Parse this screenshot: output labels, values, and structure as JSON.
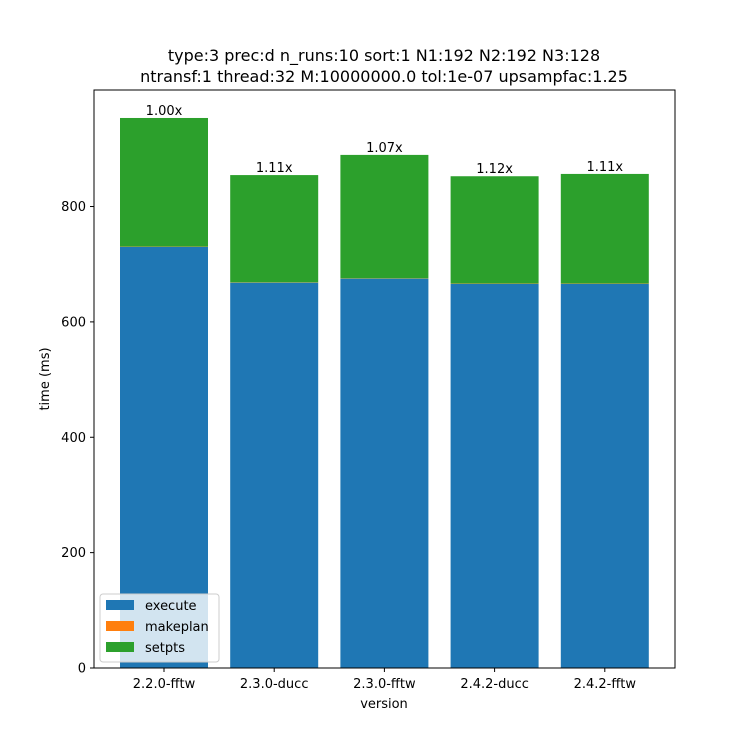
{
  "chart_data": {
    "type": "bar",
    "stacked": true,
    "title_lines": [
      "type:3 prec:d n_runs:10 sort:1 N1:192 N2:192 N3:128",
      "ntransf:1 thread:32 M:10000000.0 tol:1e-07 upsampfac:1.25"
    ],
    "xlabel": "version",
    "ylabel": "time (ms)",
    "ylim": [
      0,
      1002
    ],
    "yticks": [
      0,
      200,
      400,
      600,
      800
    ],
    "categories": [
      "2.2.0-fftw",
      "2.3.0-ducc",
      "2.3.0-fftw",
      "2.4.2-ducc",
      "2.4.2-fftw"
    ],
    "series": [
      {
        "name": "execute",
        "color": "#1f77b4",
        "values": [
          730,
          668,
          675,
          666,
          666
        ]
      },
      {
        "name": "makeplan",
        "color": "#ff7f0e",
        "values": [
          0.5,
          0.5,
          0.5,
          0.5,
          0.5
        ]
      },
      {
        "name": "setpts",
        "color": "#2ca02c",
        "values": [
          223,
          186,
          214,
          186,
          190
        ]
      }
    ],
    "bar_labels": [
      "1.00x",
      "1.11x",
      "1.07x",
      "1.12x",
      "1.11x"
    ],
    "legend_position": "lower-left",
    "grid": false
  }
}
